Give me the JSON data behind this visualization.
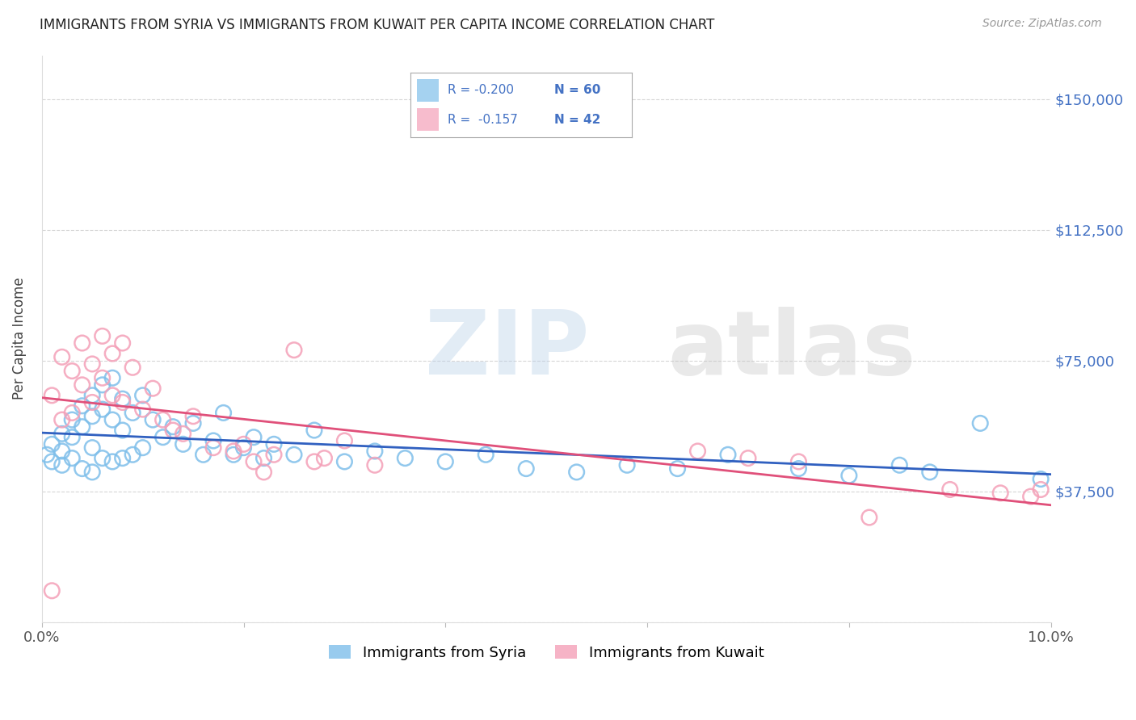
{
  "title": "IMMIGRANTS FROM SYRIA VS IMMIGRANTS FROM KUWAIT PER CAPITA INCOME CORRELATION CHART",
  "source": "Source: ZipAtlas.com",
  "ylabel": "Per Capita Income",
  "xlim": [
    0.0,
    0.1
  ],
  "ylim": [
    0,
    162500
  ],
  "yticks": [
    0,
    37500,
    75000,
    112500,
    150000
  ],
  "ytick_labels": [
    "",
    "$37,500",
    "$75,000",
    "$112,500",
    "$150,000"
  ],
  "xticks": [
    0.0,
    0.02,
    0.04,
    0.06,
    0.08,
    0.1
  ],
  "watermark": "ZIPatlas",
  "syria_color": "#7fbfea",
  "kuwait_color": "#f4a0b8",
  "syria_line_color": "#3060c0",
  "kuwait_line_color": "#e0507a",
  "axis_label_color": "#4472c4",
  "legend_syria": "Immigrants from Syria",
  "legend_kuwait": "Immigrants from Kuwait",
  "syria_R": "-0.200",
  "syria_N": "60",
  "kuwait_R": "-0.157",
  "kuwait_N": "42",
  "background_color": "#ffffff",
  "grid_color": "#cccccc",
  "title_color": "#222222",
  "source_color": "#999999",
  "syria_x": [
    0.0005,
    0.001,
    0.001,
    0.002,
    0.002,
    0.002,
    0.003,
    0.003,
    0.003,
    0.004,
    0.004,
    0.004,
    0.005,
    0.005,
    0.005,
    0.005,
    0.006,
    0.006,
    0.006,
    0.007,
    0.007,
    0.007,
    0.008,
    0.008,
    0.008,
    0.009,
    0.009,
    0.01,
    0.01,
    0.011,
    0.012,
    0.013,
    0.014,
    0.015,
    0.016,
    0.017,
    0.018,
    0.019,
    0.02,
    0.021,
    0.022,
    0.023,
    0.025,
    0.027,
    0.03,
    0.033,
    0.036,
    0.04,
    0.044,
    0.048,
    0.053,
    0.058,
    0.063,
    0.068,
    0.075,
    0.08,
    0.085,
    0.088,
    0.093,
    0.099
  ],
  "syria_y": [
    48000,
    51000,
    46000,
    54000,
    49000,
    45000,
    58000,
    53000,
    47000,
    62000,
    56000,
    44000,
    65000,
    59000,
    50000,
    43000,
    68000,
    61000,
    47000,
    70000,
    58000,
    46000,
    64000,
    55000,
    47000,
    60000,
    48000,
    65000,
    50000,
    58000,
    53000,
    56000,
    51000,
    57000,
    48000,
    52000,
    60000,
    48000,
    50000,
    53000,
    47000,
    51000,
    48000,
    55000,
    46000,
    49000,
    47000,
    46000,
    48000,
    44000,
    43000,
    45000,
    44000,
    48000,
    44000,
    42000,
    45000,
    43000,
    57000,
    41000
  ],
  "kuwait_x": [
    0.001,
    0.001,
    0.002,
    0.002,
    0.003,
    0.003,
    0.004,
    0.004,
    0.005,
    0.005,
    0.006,
    0.006,
    0.007,
    0.007,
    0.008,
    0.008,
    0.009,
    0.01,
    0.011,
    0.012,
    0.013,
    0.014,
    0.015,
    0.017,
    0.019,
    0.02,
    0.021,
    0.023,
    0.025,
    0.027,
    0.03,
    0.033,
    0.065,
    0.07,
    0.075,
    0.082,
    0.09,
    0.095,
    0.098,
    0.099,
    0.028,
    0.022
  ],
  "kuwait_y": [
    9000,
    65000,
    76000,
    58000,
    72000,
    60000,
    80000,
    68000,
    74000,
    63000,
    82000,
    70000,
    77000,
    65000,
    80000,
    63000,
    73000,
    61000,
    67000,
    58000,
    55000,
    54000,
    59000,
    50000,
    49000,
    51000,
    46000,
    48000,
    78000,
    46000,
    52000,
    45000,
    49000,
    47000,
    46000,
    30000,
    38000,
    37000,
    36000,
    38000,
    47000,
    43000
  ]
}
